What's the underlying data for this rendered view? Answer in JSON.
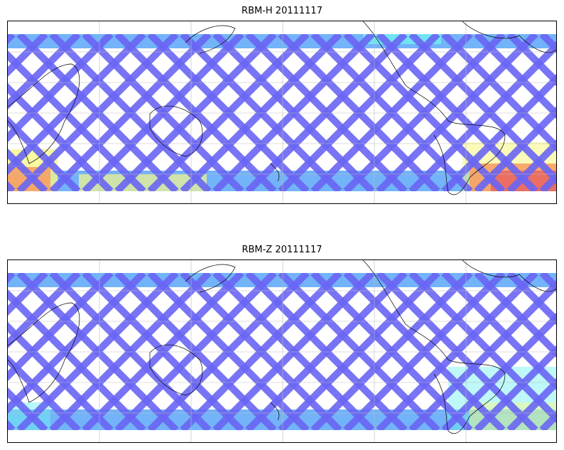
{
  "panels": [
    {
      "title": "RBM-H 20111117",
      "hot_bottom": true
    },
    {
      "title": "RBM-Z 20111117",
      "hot_bottom": false
    }
  ],
  "colors": {
    "swath": "#6a66f4",
    "swath_edge": "#5aa6f8",
    "cyan": "#6ff0f0",
    "yellow": "#f6f88a",
    "orange": "#f8a060",
    "red": "#e86060",
    "grid": "#bbbbbb",
    "coast": "#000000"
  }
}
